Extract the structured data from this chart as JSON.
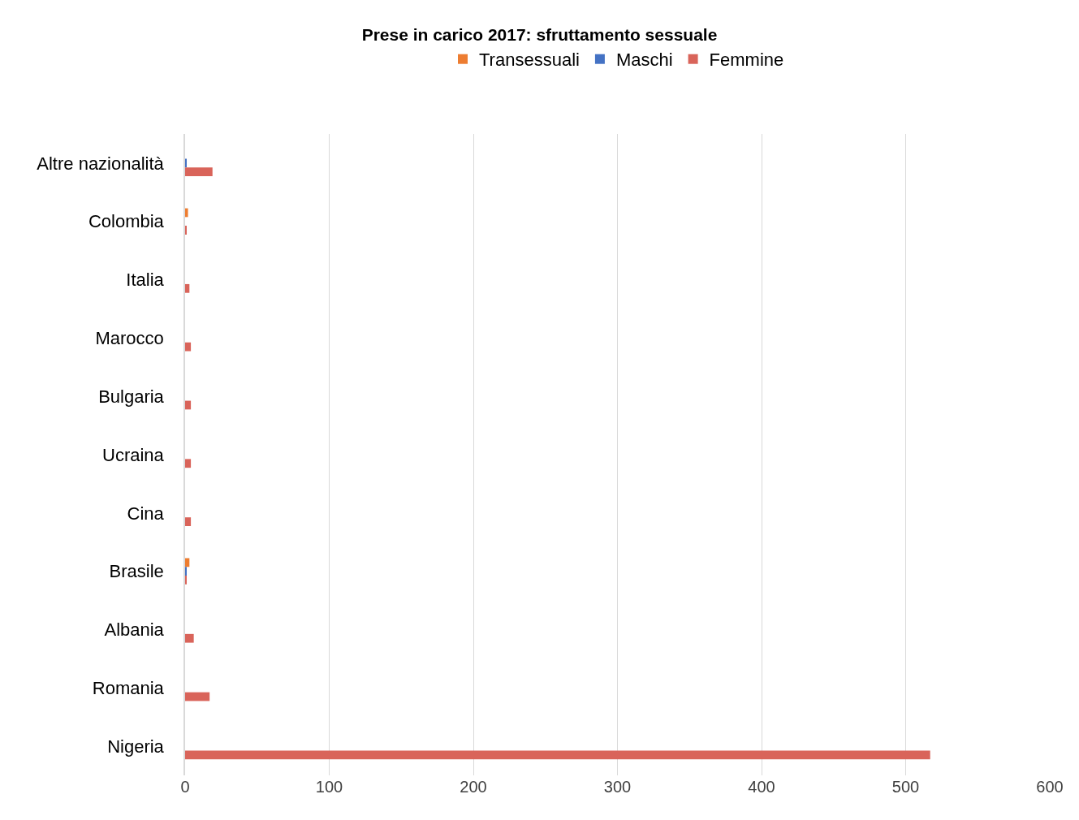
{
  "chart_data": {
    "type": "bar",
    "orientation": "horizontal",
    "title": "Prese in carico 2017: sfruttamento sessuale",
    "categories": [
      "Altre nazionalità",
      "Colombia",
      "Italia",
      "Marocco",
      "Bulgaria",
      "Ucraina",
      "Cina",
      "Brasile",
      "Albania",
      "Romania",
      "Nigeria"
    ],
    "series": [
      {
        "name": "Transessuali",
        "color": "#ed7d31",
        "values": [
          0,
          2,
          0,
          0,
          0,
          0,
          0,
          3,
          0,
          0,
          0
        ]
      },
      {
        "name": "Maschi",
        "color": "#4472c4",
        "values": [
          1,
          0,
          0,
          0,
          0,
          0,
          0,
          1,
          0,
          0,
          0
        ]
      },
      {
        "name": "Femmine",
        "color": "#d9645a",
        "values": [
          19,
          1,
          3,
          4,
          4,
          4,
          4,
          1,
          6,
          17,
          517
        ]
      }
    ],
    "xlim": [
      0,
      600
    ],
    "xticks": [
      0,
      100,
      200,
      300,
      400,
      500,
      600
    ],
    "grid": "x",
    "legend": "top"
  }
}
